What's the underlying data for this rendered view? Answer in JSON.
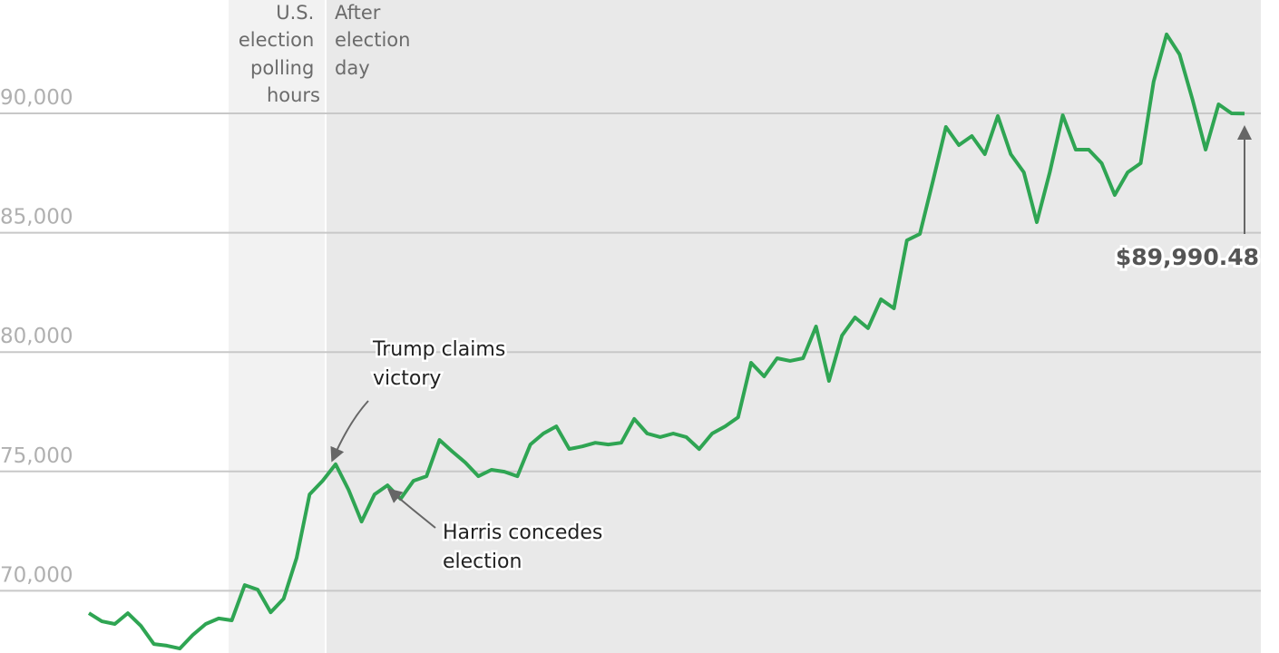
{
  "chart_data": {
    "type": "line",
    "title": "",
    "xlabel": "",
    "ylabel": "",
    "ylim": [
      66700,
      93800
    ],
    "y_ticks": [
      "70,000",
      "75,000",
      "80,000",
      "85,000",
      "90,000"
    ],
    "y_tick_values": [
      70000,
      75000,
      80000,
      85000,
      90000
    ],
    "grid": true,
    "line_color": "#2fa553",
    "shaded_regions": [
      {
        "label": [
          "U.S.",
          "election",
          "polling",
          "hours"
        ],
        "color": "#f2f2f2"
      },
      {
        "label": [
          "After",
          "election",
          "day"
        ],
        "color": "#e9e9e9"
      }
    ],
    "values": [
      69060,
      68720,
      68610,
      69060,
      68530,
      67770,
      67700,
      67580,
      68150,
      68610,
      68840,
      68760,
      70240,
      70050,
      69100,
      69670,
      71380,
      74040,
      74610,
      75300,
      74230,
      72900,
      74040,
      74420,
      73850,
      74610,
      74800,
      76320,
      75830,
      75370,
      74800,
      75070,
      74990,
      74800,
      76130,
      76590,
      76890,
      75940,
      76050,
      76200,
      76130,
      76200,
      77200,
      76590,
      76440,
      76590,
      76440,
      75940,
      76590,
      76890,
      77270,
      79550,
      78980,
      79740,
      79630,
      79740,
      81070,
      78790,
      80690,
      81450,
      81000,
      82210,
      81830,
      84680,
      84950,
      87150,
      89430,
      88670,
      89050,
      88290,
      89890,
      88290,
      87530,
      85440,
      87530,
      89920,
      88480,
      88480,
      87910,
      86580,
      87530,
      87910,
      91330,
      93310,
      92470,
      90570,
      88480,
      90380,
      90000,
      89990.48
    ],
    "annotations": [
      {
        "text": [
          "Trump claims",
          "victory"
        ]
      },
      {
        "text": [
          "Harris concedes",
          "election"
        ]
      }
    ],
    "final_label": "$89,990.48"
  }
}
